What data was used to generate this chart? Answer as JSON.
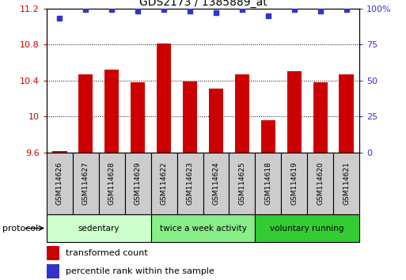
{
  "title": "GDS2173 / 1385889_at",
  "categories": [
    "GSM114626",
    "GSM114627",
    "GSM114628",
    "GSM114629",
    "GSM114622",
    "GSM114623",
    "GSM114624",
    "GSM114625",
    "GSM114618",
    "GSM114619",
    "GSM114620",
    "GSM114621"
  ],
  "bar_values": [
    9.62,
    10.47,
    10.52,
    10.38,
    10.81,
    10.39,
    10.31,
    10.47,
    9.96,
    10.5,
    10.38,
    10.47
  ],
  "dot_values": [
    93,
    99,
    99,
    98,
    99,
    98,
    97,
    99,
    95,
    99,
    98,
    99
  ],
  "ylim_left": [
    9.6,
    11.2
  ],
  "ylim_right": [
    0,
    100
  ],
  "yticks_left": [
    9.6,
    10.0,
    10.4,
    10.8,
    11.2
  ],
  "yticks_right": [
    0,
    25,
    50,
    75,
    100
  ],
  "ytick_labels_left": [
    "9.6",
    "10",
    "10.4",
    "10.8",
    "11.2"
  ],
  "ytick_labels_right": [
    "0",
    "25",
    "50",
    "75",
    "100%"
  ],
  "bar_color": "#cc0000",
  "dot_color": "#3333cc",
  "bar_bottom": 9.6,
  "groups": [
    {
      "label": "sedentary",
      "start": 0,
      "end": 4,
      "color": "#ccffcc"
    },
    {
      "label": "twice a week activity",
      "start": 4,
      "end": 8,
      "color": "#88ee88"
    },
    {
      "label": "voluntary running",
      "start": 8,
      "end": 12,
      "color": "#33cc33"
    }
  ],
  "legend_items": [
    {
      "label": "transformed count",
      "color": "#cc0000"
    },
    {
      "label": "percentile rank within the sample",
      "color": "#3333cc"
    }
  ],
  "protocol_label": "protocol",
  "tick_color_left": "#cc0000",
  "tick_color_right": "#3333cc",
  "label_box_color": "#cccccc",
  "fig_width": 5.13,
  "fig_height": 3.54,
  "dpi": 100
}
